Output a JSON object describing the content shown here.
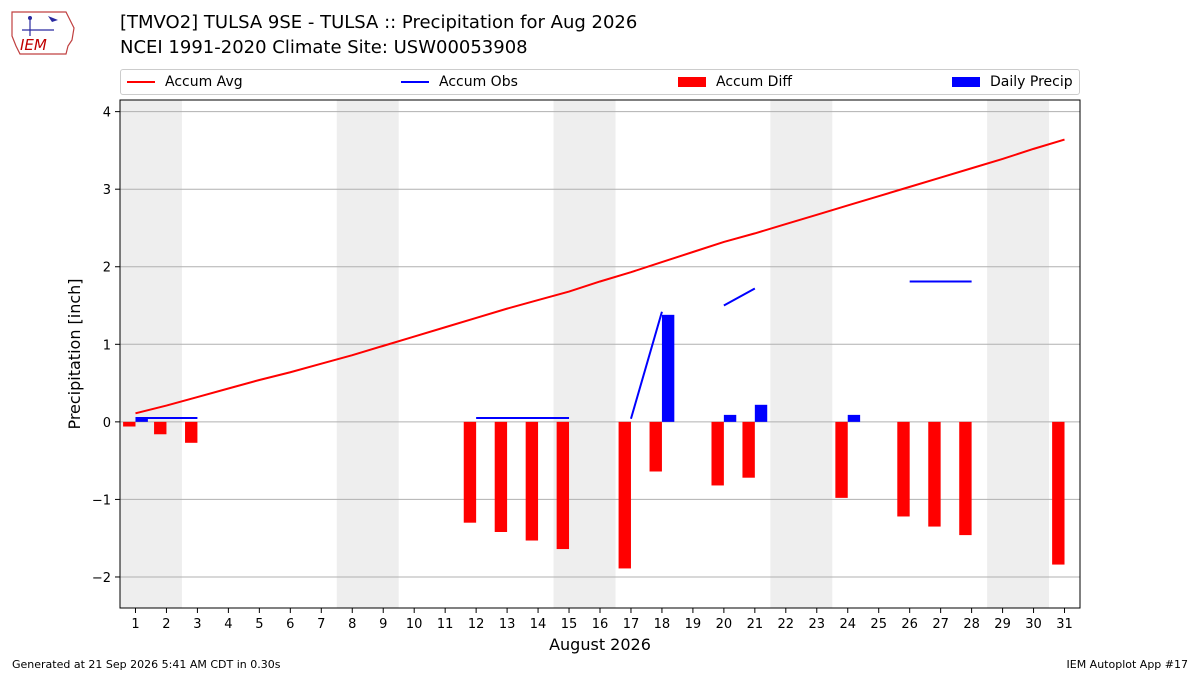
{
  "header": {
    "title_line1": "[TMVO2] TULSA 9SE - TULSA :: Precipitation for Aug 2026",
    "title_line2": "NCEI 1991-2020 Climate Site: USW00053908",
    "logo_text": "IEM"
  },
  "colors": {
    "avg": "#ff0000",
    "obs": "#0000ff",
    "diff": "#ff0000",
    "daily": "#0000ff",
    "weekend_shade": "#eeeeee",
    "grid": "#b0b0b0"
  },
  "legend": [
    {
      "label": "Accum Avg",
      "kind": "line",
      "color": "#ff0000"
    },
    {
      "label": "Accum Obs",
      "kind": "line",
      "color": "#0000ff"
    },
    {
      "label": "Accum Diff",
      "kind": "box",
      "color": "#ff0000"
    },
    {
      "label": "Daily Precip",
      "kind": "box",
      "color": "#0000ff"
    }
  ],
  "footer": {
    "left": "Generated at 21 Sep 2026 5:41 AM CDT in 0.30s",
    "right": "IEM Autoplot App #17"
  },
  "chart_data": {
    "type": "bar",
    "xlabel": "August 2026",
    "ylabel": "Precipitation [inch]",
    "xlim": [
      0.5,
      31.5
    ],
    "ylim": [
      -2.4,
      4.15
    ],
    "xticks": [
      1,
      2,
      3,
      4,
      5,
      6,
      7,
      8,
      9,
      10,
      11,
      12,
      13,
      14,
      15,
      16,
      17,
      18,
      19,
      20,
      21,
      22,
      23,
      24,
      25,
      26,
      27,
      28,
      29,
      30,
      31
    ],
    "yticks": [
      -2,
      -1,
      0,
      1,
      2,
      3,
      4
    ],
    "ytick_labels": [
      "−2",
      "−1",
      "0",
      "1",
      "2",
      "3",
      "4"
    ],
    "grid": "y",
    "weekend_shading": [
      [
        1,
        2
      ],
      [
        8,
        9
      ],
      [
        15,
        16
      ],
      [
        22,
        23
      ],
      [
        29,
        30
      ]
    ],
    "accum_avg": {
      "x": [
        1,
        2,
        3,
        4,
        5,
        6,
        7,
        8,
        9,
        10,
        11,
        12,
        13,
        14,
        15,
        16,
        17,
        18,
        19,
        20,
        21,
        22,
        23,
        24,
        25,
        26,
        27,
        28,
        29,
        30,
        31
      ],
      "values": [
        0.11,
        0.21,
        0.32,
        0.43,
        0.54,
        0.64,
        0.75,
        0.86,
        0.98,
        1.1,
        1.22,
        1.34,
        1.46,
        1.57,
        1.68,
        1.81,
        1.93,
        2.06,
        2.19,
        2.32,
        2.43,
        2.55,
        2.67,
        2.79,
        2.91,
        3.03,
        3.15,
        3.27,
        3.39,
        3.52,
        3.64
      ]
    },
    "accum_obs": [
      {
        "x": [
          1,
          2,
          3
        ],
        "values": [
          0.05,
          0.05,
          0.05
        ]
      },
      {
        "x": [
          12,
          13,
          14,
          15
        ],
        "values": [
          0.05,
          0.05,
          0.05,
          0.05
        ]
      },
      {
        "x": [
          17,
          18
        ],
        "values": [
          0.04,
          1.42
        ]
      },
      {
        "x": [
          20,
          21
        ],
        "values": [
          1.5,
          1.72
        ]
      },
      {
        "x": [
          26,
          27,
          28
        ],
        "values": [
          1.81,
          1.81,
          1.81
        ]
      }
    ],
    "accum_diff": {
      "x": [
        1,
        2,
        3,
        12,
        13,
        14,
        15,
        17,
        18,
        20,
        21,
        24,
        26,
        27,
        28,
        31
      ],
      "values": [
        -0.06,
        -0.16,
        -0.27,
        -1.3,
        -1.42,
        -1.53,
        -1.64,
        -1.89,
        -0.64,
        -0.82,
        -0.72,
        -0.98,
        -1.22,
        -1.35,
        -1.46,
        -1.84
      ]
    },
    "daily_precip": {
      "x": [
        1,
        18,
        20,
        21,
        24
      ],
      "values": [
        0.05,
        1.38,
        0.09,
        0.22,
        0.09
      ]
    }
  }
}
